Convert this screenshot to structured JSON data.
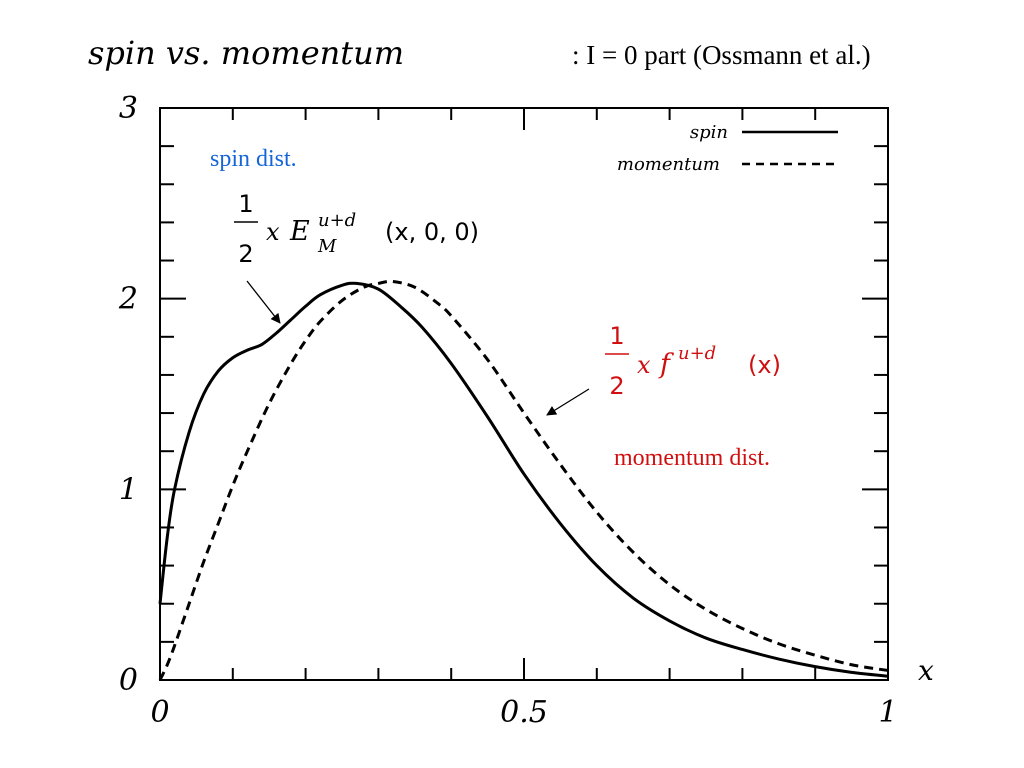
{
  "header": {
    "title": "spin vs. momentum",
    "subtitle": ": I = 0 part (Ossmann et al.)"
  },
  "chart_data": {
    "type": "line",
    "xlabel": "x",
    "ylabel": "",
    "xlim": [
      0,
      1
    ],
    "ylim": [
      0,
      3
    ],
    "x_ticks": [
      0,
      0.5,
      1
    ],
    "x_tick_labels": [
      "0",
      "0.5",
      "1"
    ],
    "y_ticks": [
      0,
      1,
      2,
      3
    ],
    "y_tick_labels": [
      "0",
      "1",
      "2",
      "3"
    ],
    "grid": false,
    "legend": {
      "position": "top-right",
      "entries": [
        {
          "label": "spin",
          "style": "solid"
        },
        {
          "label": "momentum",
          "style": "dashed"
        }
      ]
    },
    "series": [
      {
        "name": "spin",
        "style": "solid",
        "color": "#000000",
        "x": [
          0,
          0.01,
          0.02,
          0.04,
          0.06,
          0.08,
          0.1,
          0.12,
          0.14,
          0.16,
          0.18,
          0.2,
          0.22,
          0.25,
          0.27,
          0.3,
          0.33,
          0.36,
          0.4,
          0.45,
          0.5,
          0.55,
          0.6,
          0.65,
          0.7,
          0.75,
          0.8,
          0.85,
          0.9,
          0.95,
          1.0
        ],
        "y": [
          0.4,
          0.75,
          1.0,
          1.3,
          1.5,
          1.62,
          1.69,
          1.73,
          1.76,
          1.82,
          1.89,
          1.96,
          2.02,
          2.07,
          2.08,
          2.05,
          1.96,
          1.85,
          1.66,
          1.38,
          1.08,
          0.82,
          0.6,
          0.43,
          0.31,
          0.22,
          0.16,
          0.11,
          0.07,
          0.04,
          0.02
        ]
      },
      {
        "name": "momentum",
        "style": "dashed",
        "color": "#000000",
        "x": [
          0,
          0.01,
          0.02,
          0.04,
          0.06,
          0.08,
          0.1,
          0.12,
          0.15,
          0.18,
          0.2,
          0.22,
          0.25,
          0.28,
          0.3,
          0.32,
          0.35,
          0.38,
          0.4,
          0.45,
          0.5,
          0.55,
          0.6,
          0.65,
          0.7,
          0.75,
          0.8,
          0.85,
          0.9,
          0.95,
          1.0
        ],
        "y": [
          0.0,
          0.08,
          0.18,
          0.4,
          0.62,
          0.82,
          1.02,
          1.2,
          1.45,
          1.66,
          1.78,
          1.88,
          1.99,
          2.06,
          2.08,
          2.09,
          2.06,
          1.98,
          1.91,
          1.68,
          1.4,
          1.13,
          0.88,
          0.67,
          0.5,
          0.37,
          0.27,
          0.19,
          0.13,
          0.08,
          0.05
        ]
      }
    ],
    "annotations": {
      "spin_dist": "spin dist.",
      "momentum_dist": "momentum dist.",
      "spin_formula": "½ x E_M^{u+d}(x,0,0)",
      "momentum_formula": "½ x f^{u+d}(x)"
    }
  },
  "formula_parts": {
    "half_num": "1",
    "half_den": "2",
    "x": "x",
    "E": "E",
    "M": "M",
    "ud": "u+d",
    "spin_args": "(x, 0, 0)",
    "f": "f",
    "mom_args": "(x)"
  },
  "colors": {
    "spin_label": "#1565d8",
    "momentum_label": "#d01010",
    "axis": "#000000"
  }
}
